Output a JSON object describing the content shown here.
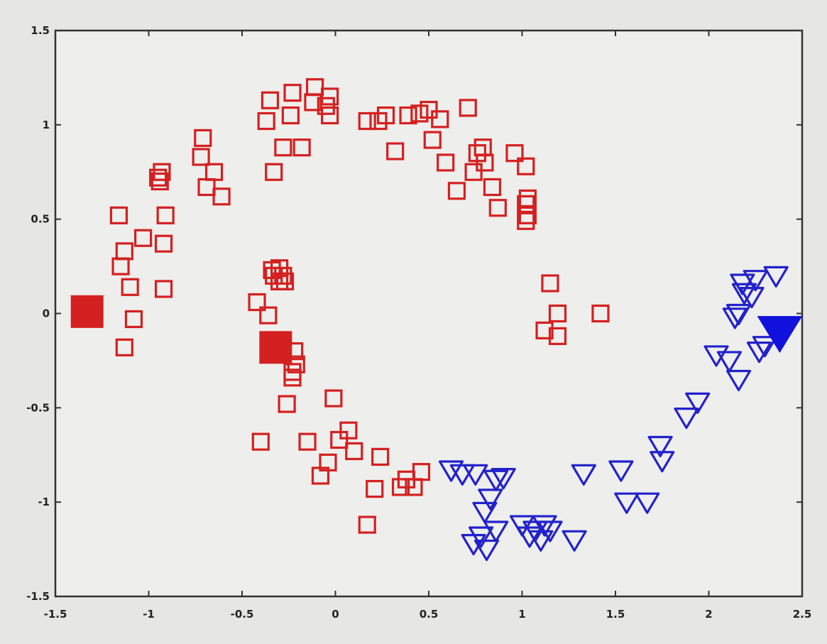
{
  "chart_data": {
    "type": "scatter",
    "title": "",
    "xlabel": "",
    "ylabel": "",
    "xlim": [
      -1.5,
      2.5
    ],
    "ylim": [
      -1.5,
      1.5
    ],
    "grid": false,
    "legend": "none",
    "x_ticks": [
      {
        "value": -1.5,
        "label": "-1.5"
      },
      {
        "value": -1,
        "label": "-1"
      },
      {
        "value": -0.5,
        "label": "-0.5"
      },
      {
        "value": 0,
        "label": "0"
      },
      {
        "value": 0.5,
        "label": "0.5"
      },
      {
        "value": 1,
        "label": "1"
      },
      {
        "value": 1.5,
        "label": "1.5"
      },
      {
        "value": 2,
        "label": "2"
      },
      {
        "value": 2.5,
        "label": "2.5"
      }
    ],
    "y_ticks": [
      {
        "value": -1.5,
        "label": "-1.5"
      },
      {
        "value": -1,
        "label": "-1"
      },
      {
        "value": -0.5,
        "label": "-0.5"
      },
      {
        "value": 0,
        "label": "0"
      },
      {
        "value": 0.5,
        "label": "0.5"
      },
      {
        "value": 1,
        "label": "1"
      },
      {
        "value": 1.5,
        "label": "1.5"
      }
    ],
    "series": [
      {
        "marker": "square-open",
        "color": "#d42020",
        "points": [
          [
            -0.95,
            0.72
          ],
          [
            -0.94,
            0.7
          ],
          [
            -0.93,
            0.75
          ],
          [
            -0.91,
            0.52
          ],
          [
            -0.92,
            0.37
          ],
          [
            -1.03,
            0.4
          ],
          [
            -0.92,
            0.13
          ],
          [
            -1.13,
            0.33
          ],
          [
            -1.15,
            0.25
          ],
          [
            -1.1,
            0.14
          ],
          [
            -1.08,
            -0.03
          ],
          [
            -1.13,
            -0.18
          ],
          [
            -1.16,
            0.52
          ],
          [
            -0.71,
            0.93
          ],
          [
            -0.72,
            0.83
          ],
          [
            -0.65,
            0.75
          ],
          [
            -0.69,
            0.67
          ],
          [
            -0.61,
            0.62
          ],
          [
            -0.37,
            1.02
          ],
          [
            -0.35,
            1.13
          ],
          [
            -0.33,
            0.75
          ],
          [
            -0.28,
            0.88
          ],
          [
            -0.24,
            1.05
          ],
          [
            -0.23,
            1.17
          ],
          [
            -0.18,
            0.88
          ],
          [
            -0.12,
            1.12
          ],
          [
            -0.11,
            1.2
          ],
          [
            -0.05,
            1.1
          ],
          [
            -0.03,
            1.05
          ],
          [
            -0.03,
            1.15
          ],
          [
            0.17,
            1.02
          ],
          [
            0.23,
            1.02
          ],
          [
            0.27,
            1.05
          ],
          [
            0.32,
            0.86
          ],
          [
            0.39,
            1.05
          ],
          [
            0.45,
            1.06
          ],
          [
            0.5,
            1.08
          ],
          [
            0.52,
            0.92
          ],
          [
            0.56,
            1.03
          ],
          [
            0.59,
            0.8
          ],
          [
            0.65,
            0.65
          ],
          [
            0.71,
            1.09
          ],
          [
            0.74,
            0.75
          ],
          [
            0.76,
            0.85
          ],
          [
            0.79,
            0.88
          ],
          [
            0.8,
            0.8
          ],
          [
            0.84,
            0.67
          ],
          [
            0.87,
            0.56
          ],
          [
            0.96,
            0.85
          ],
          [
            1.02,
            0.78
          ],
          [
            1.02,
            0.58
          ],
          [
            1.03,
            0.61
          ],
          [
            1.03,
            0.52
          ],
          [
            1.02,
            0.49
          ],
          [
            -0.34,
            0.23
          ],
          [
            -0.33,
            0.2
          ],
          [
            -0.3,
            0.24
          ],
          [
            -0.28,
            0.2
          ],
          [
            -0.3,
            0.17
          ],
          [
            -0.27,
            0.17
          ],
          [
            -0.42,
            0.06
          ],
          [
            -0.36,
            -0.01
          ],
          [
            -0.22,
            -0.2
          ],
          [
            -0.21,
            -0.27
          ],
          [
            -0.23,
            -0.31
          ],
          [
            -0.23,
            -0.34
          ],
          [
            -0.26,
            -0.48
          ],
          [
            -0.01,
            -0.45
          ],
          [
            -0.4,
            -0.68
          ],
          [
            -0.15,
            -0.68
          ],
          [
            0.07,
            -0.62
          ],
          [
            0.02,
            -0.67
          ],
          [
            -0.04,
            -0.79
          ],
          [
            -0.08,
            -0.86
          ],
          [
            0.1,
            -0.73
          ],
          [
            0.24,
            -0.76
          ],
          [
            0.21,
            -0.93
          ],
          [
            0.35,
            -0.92
          ],
          [
            0.38,
            -0.88
          ],
          [
            0.42,
            -0.92
          ],
          [
            0.46,
            -0.84
          ],
          [
            0.17,
            -1.12
          ],
          [
            1.15,
            0.16
          ],
          [
            1.19,
            0.0
          ],
          [
            1.12,
            -0.09
          ],
          [
            1.19,
            -0.12
          ],
          [
            1.42,
            0.0
          ]
        ]
      },
      {
        "marker": "square-filled",
        "color": "#d42020",
        "points": [
          [
            -1.33,
            0.01
          ],
          [
            -0.32,
            -0.18
          ]
        ]
      },
      {
        "marker": "triangle-open",
        "color": "#2222cc",
        "points": [
          [
            0.62,
            -0.83
          ],
          [
            0.68,
            -0.85
          ],
          [
            0.75,
            -0.85
          ],
          [
            0.86,
            -0.88
          ],
          [
            0.9,
            -0.87
          ],
          [
            0.83,
            -0.98
          ],
          [
            0.8,
            -1.05
          ],
          [
            0.86,
            -1.15
          ],
          [
            0.78,
            -1.18
          ],
          [
            0.74,
            -1.22
          ],
          [
            0.81,
            -1.25
          ],
          [
            1.0,
            -1.12
          ],
          [
            1.04,
            -1.18
          ],
          [
            1.07,
            -1.15
          ],
          [
            1.1,
            -1.2
          ],
          [
            1.12,
            -1.12
          ],
          [
            1.15,
            -1.15
          ],
          [
            1.28,
            -1.2
          ],
          [
            1.33,
            -0.85
          ],
          [
            1.53,
            -0.83
          ],
          [
            1.56,
            -1.0
          ],
          [
            1.67,
            -1.0
          ],
          [
            1.74,
            -0.7
          ],
          [
            1.75,
            -0.78
          ],
          [
            1.88,
            -0.55
          ],
          [
            1.94,
            -0.47
          ],
          [
            2.04,
            -0.22
          ],
          [
            2.11,
            -0.25
          ],
          [
            2.16,
            -0.35
          ],
          [
            2.14,
            -0.02
          ],
          [
            2.16,
            0.0
          ],
          [
            2.18,
            0.16
          ],
          [
            2.19,
            0.11
          ],
          [
            2.23,
            0.09
          ],
          [
            2.25,
            0.18
          ],
          [
            2.27,
            -0.2
          ],
          [
            2.3,
            -0.17
          ],
          [
            2.36,
            0.2
          ]
        ]
      },
      {
        "marker": "triangle-filled",
        "color": "#1111dd",
        "points": [
          [
            2.38,
            -0.1
          ]
        ]
      }
    ]
  }
}
